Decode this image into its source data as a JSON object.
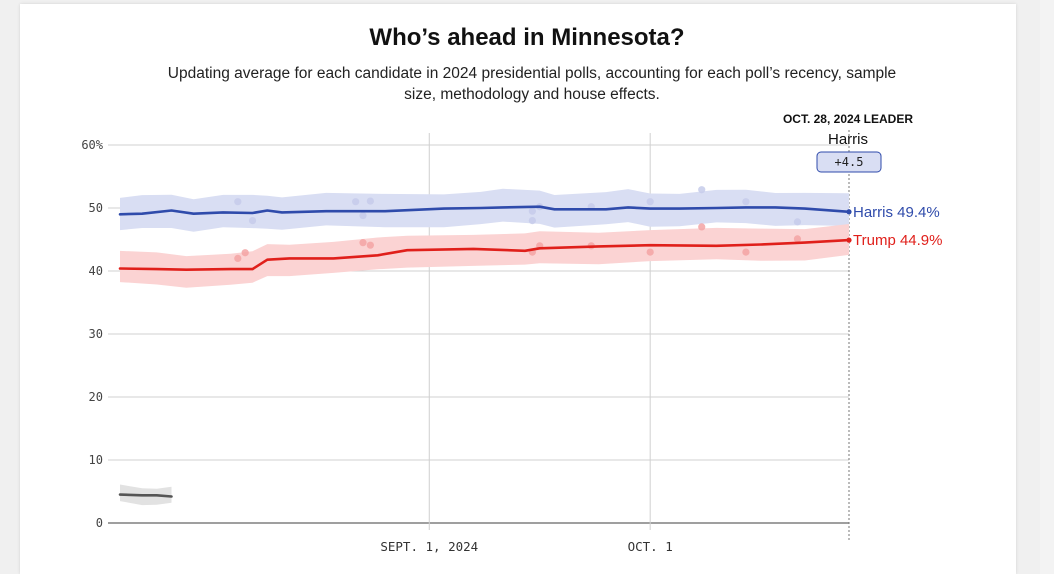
{
  "title": "Who’s ahead in Minnesota?",
  "subtitle": "Updating average for each candidate in 2024 presidential polls, accounting for each poll’s recency, sample size, methodology and house effects.",
  "leader": {
    "heading": "OCT. 28, 2024 LEADER",
    "name": "Harris",
    "margin": "+4.5"
  },
  "colors": {
    "harris": "#2f4bab",
    "harris_band": "#d9def3",
    "harris_dot": "#c5cbea",
    "trump": "#e0201b",
    "trump_band": "#fbd3d3",
    "trump_dot": "#f3a3a3",
    "other": "#555555",
    "other_band": "#e2e2e2",
    "grid": "#d0d0d0",
    "leader_box": "#d9def3",
    "leader_box_border": "#2f4bab"
  },
  "chart_data": {
    "type": "line",
    "title": "Who’s ahead in Minnesota?",
    "ylim": [
      0,
      60
    ],
    "yticks": [
      0,
      10,
      20,
      30,
      40,
      50,
      60
    ],
    "ytick_labels": [
      "0",
      "10",
      "20",
      "30",
      "40",
      "50",
      "60%"
    ],
    "xlim": [
      "2024-07-21",
      "2024-10-28"
    ],
    "xticks": [
      "2024-09-01",
      "2024-10-01"
    ],
    "xtick_labels": [
      "SEPT. 1, 2024",
      "OCT. 1"
    ],
    "grid": true,
    "series": [
      {
        "name": "Harris",
        "end_label": "Harris 49.4%",
        "band_width": 2.6,
        "points": [
          [
            "2024-07-21",
            49.0
          ],
          [
            "2024-07-24",
            49.1
          ],
          [
            "2024-07-28",
            49.6
          ],
          [
            "2024-07-31",
            49.1
          ],
          [
            "2024-08-04",
            49.3
          ],
          [
            "2024-08-08",
            49.2
          ],
          [
            "2024-08-10",
            49.6
          ],
          [
            "2024-08-12",
            49.3
          ],
          [
            "2024-08-18",
            49.5
          ],
          [
            "2024-08-26",
            49.5
          ],
          [
            "2024-09-03",
            49.9
          ],
          [
            "2024-09-08",
            50.0
          ],
          [
            "2024-09-11",
            50.1
          ],
          [
            "2024-09-16",
            50.2
          ],
          [
            "2024-09-18",
            49.8
          ],
          [
            "2024-09-25",
            49.8
          ],
          [
            "2024-09-28",
            50.1
          ],
          [
            "2024-10-01",
            49.9
          ],
          [
            "2024-10-05",
            49.9
          ],
          [
            "2024-10-10",
            50.0
          ],
          [
            "2024-10-14",
            50.1
          ],
          [
            "2024-10-18",
            50.1
          ],
          [
            "2024-10-22",
            49.9
          ],
          [
            "2024-10-28",
            49.4
          ]
        ],
        "polls": [
          [
            "2024-08-06",
            51.0
          ],
          [
            "2024-08-08",
            48.0
          ],
          [
            "2024-08-22",
            51.0
          ],
          [
            "2024-08-23",
            48.8
          ],
          [
            "2024-08-24",
            51.1
          ],
          [
            "2024-09-15",
            49.5
          ],
          [
            "2024-09-15",
            48.0
          ],
          [
            "2024-09-16",
            50.2
          ],
          [
            "2024-09-23",
            50.2
          ],
          [
            "2024-10-01",
            51.0
          ],
          [
            "2024-10-08",
            52.9
          ],
          [
            "2024-10-14",
            51.0
          ],
          [
            "2024-10-21",
            47.8
          ]
        ]
      },
      {
        "name": "Trump",
        "end_label": "Trump 44.9%",
        "band_width": 2.5,
        "points": [
          [
            "2024-07-21",
            40.4
          ],
          [
            "2024-07-26",
            40.3
          ],
          [
            "2024-07-30",
            40.2
          ],
          [
            "2024-08-05",
            40.3
          ],
          [
            "2024-08-08",
            40.3
          ],
          [
            "2024-08-10",
            41.8
          ],
          [
            "2024-08-13",
            42.0
          ],
          [
            "2024-08-19",
            42.0
          ],
          [
            "2024-08-25",
            42.5
          ],
          [
            "2024-08-29",
            43.3
          ],
          [
            "2024-09-07",
            43.5
          ],
          [
            "2024-09-14",
            43.2
          ],
          [
            "2024-09-16",
            43.6
          ],
          [
            "2024-09-24",
            43.9
          ],
          [
            "2024-10-01",
            44.1
          ],
          [
            "2024-10-10",
            44.0
          ],
          [
            "2024-10-16",
            44.2
          ],
          [
            "2024-10-22",
            44.5
          ],
          [
            "2024-10-28",
            44.9
          ]
        ],
        "polls": [
          [
            "2024-08-06",
            42.0
          ],
          [
            "2024-08-07",
            42.9
          ],
          [
            "2024-08-23",
            44.5
          ],
          [
            "2024-08-24",
            44.1
          ],
          [
            "2024-09-15",
            43.0
          ],
          [
            "2024-09-16",
            44.0
          ],
          [
            "2024-09-23",
            44.0
          ],
          [
            "2024-10-01",
            43.0
          ],
          [
            "2024-10-08",
            47.0
          ],
          [
            "2024-10-14",
            43.0
          ],
          [
            "2024-10-21",
            45.1
          ]
        ]
      },
      {
        "name": "",
        "end_label": "",
        "band_width": 1.3,
        "points": [
          [
            "2024-07-21",
            4.5
          ],
          [
            "2024-07-24",
            4.4
          ],
          [
            "2024-07-26",
            4.4
          ],
          [
            "2024-07-28",
            4.2
          ]
        ],
        "polls": []
      }
    ]
  }
}
